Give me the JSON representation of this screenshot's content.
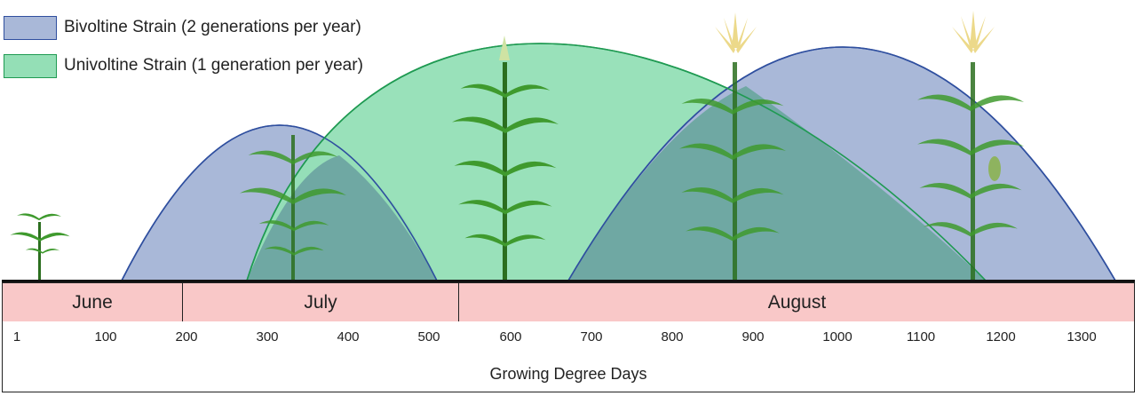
{
  "legend": {
    "bivoltine": {
      "label": "Bivoltine Strain (2 generations per year)",
      "fill": "#a9b8d8",
      "stroke": "#2f4f9f"
    },
    "univoltine": {
      "label": "Univoltine Strain (1 generation per year)",
      "fill": "#94dfb6",
      "stroke": "#1f9a52"
    }
  },
  "months": [
    {
      "label": "June"
    },
    {
      "label": "July"
    },
    {
      "label": "August"
    }
  ],
  "axis": {
    "title": "Growing Degree Days",
    "ticks": [
      "1",
      "100",
      "200",
      "300",
      "400",
      "500",
      "600",
      "700",
      "800",
      "900",
      "1000",
      "1100",
      "1200",
      "1300"
    ]
  },
  "colors": {
    "month_band": "#f9c8c8",
    "overlap": "#6fa8a3",
    "plant_leaf": "#3f9a2e",
    "plant_dark": "#2b6e1f",
    "tassel": "#ecd98a"
  },
  "icons": [
    "corn-seedling-icon",
    "corn-plant-icon",
    "corn-tassel-icon"
  ]
}
